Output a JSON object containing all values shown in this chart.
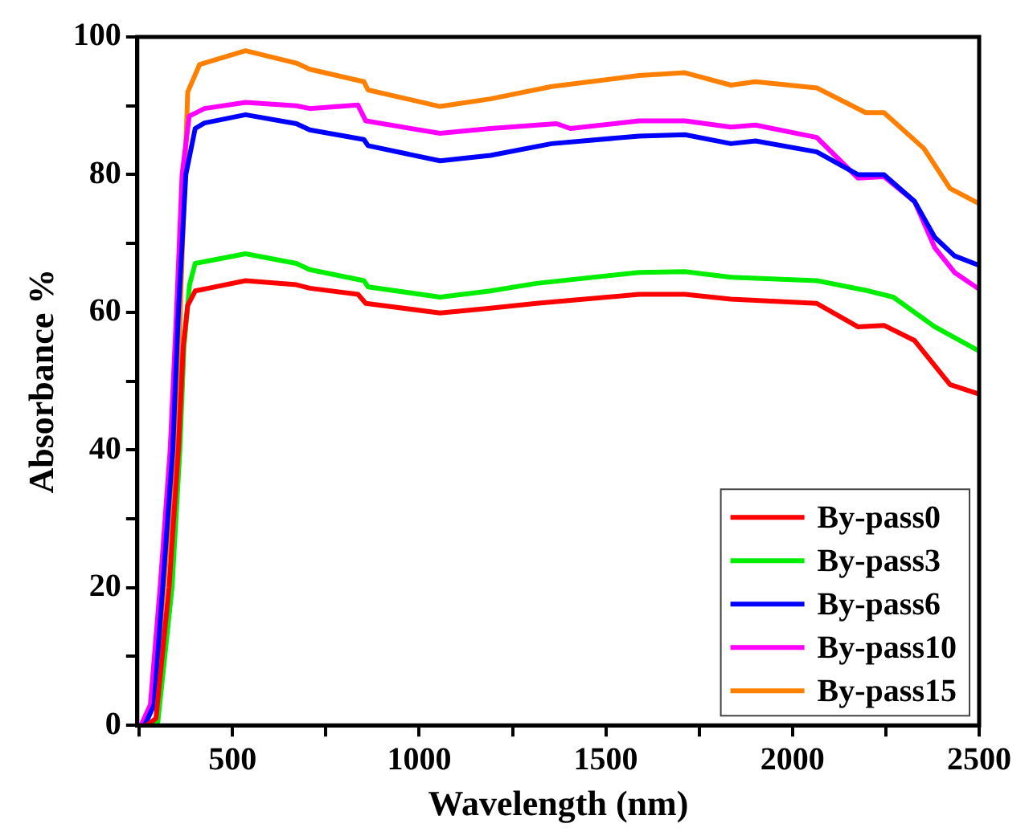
{
  "chart_data": {
    "type": "line",
    "xlabel": "Wavelength (nm)",
    "ylabel": "Absorbance %",
    "xlim": [
      245,
      2500
    ],
    "ylim": [
      0,
      100
    ],
    "xticks": [
      {
        "value": 250,
        "label": null
      },
      500,
      {
        "value": 750,
        "label": null
      },
      1000,
      {
        "value": 1250,
        "label": null
      },
      1500,
      {
        "value": 1750,
        "label": null
      },
      2000,
      {
        "value": 2250,
        "label": null
      },
      2500
    ],
    "yticks": [
      0,
      {
        "value": 10,
        "label": null
      },
      20,
      {
        "value": 30,
        "label": null
      },
      40,
      {
        "value": 50,
        "label": null
      },
      60,
      {
        "value": 70,
        "label": null
      },
      80,
      {
        "value": 90,
        "label": null
      },
      100
    ],
    "grid": false,
    "legend": "bottom right",
    "marker": "none",
    "line_style": "solid",
    "series": [
      {
        "name": "By-pass0",
        "color": "#ff0000",
        "x": [
          270,
          295,
          330,
          355,
          368,
          380,
          400,
          535,
          671,
          707,
          836,
          857,
          1056,
          1191,
          1314,
          1589,
          1712,
          1835,
          2065,
          2175,
          2245,
          2327,
          2422,
          2496
        ],
        "values": [
          0,
          1,
          20,
          40,
          55,
          61,
          63.1,
          64.6,
          64.0,
          63.5,
          62.6,
          61.3,
          59.9,
          60.6,
          61.3,
          62.6,
          62.6,
          61.9,
          61.3,
          57.9,
          58.1,
          55.9,
          49.5,
          48.2
        ]
      },
      {
        "name": "By-pass3",
        "color": "#00ee00",
        "x": [
          275,
          300,
          338,
          359,
          370,
          385,
          400,
          535,
          671,
          707,
          852,
          863,
          1056,
          1191,
          1314,
          1589,
          1712,
          1835,
          2065,
          2204,
          2270,
          2381,
          2496
        ],
        "values": [
          0,
          0.5,
          20,
          40,
          55,
          64,
          67.1,
          68.5,
          67.1,
          66.2,
          64.6,
          63.7,
          62.2,
          63.1,
          64.2,
          65.8,
          65.9,
          65.1,
          64.6,
          63.1,
          62.2,
          57.9,
          54.5
        ]
      },
      {
        "name": "By-pass6",
        "color": "#0000ff",
        "x": [
          265,
          290,
          313,
          340,
          355,
          375,
          400,
          425,
          535,
          671,
          707,
          852,
          863,
          1056,
          1191,
          1355,
          1589,
          1712,
          1835,
          1901,
          2065,
          2175,
          2245,
          2327,
          2381,
          2434,
          2496
        ],
        "values": [
          0,
          3,
          20,
          40,
          60,
          80,
          86.7,
          87.5,
          88.7,
          87.4,
          86.5,
          85.1,
          84.2,
          82.0,
          82.8,
          84.5,
          85.6,
          85.8,
          84.5,
          84.9,
          83.3,
          80,
          80,
          76.1,
          70.9,
          68.2,
          66.9
        ]
      },
      {
        "name": "By-pass10",
        "color": "#ff00ff",
        "x": [
          255,
          280,
          306,
          333,
          350,
          365,
          384,
          425,
          535,
          671,
          707,
          836,
          857,
          1056,
          1191,
          1368,
          1405,
          1589,
          1712,
          1835,
          1901,
          2065,
          2175,
          2245,
          2327,
          2381,
          2434,
          2496
        ],
        "values": [
          0,
          3,
          20,
          40,
          60,
          80,
          88.5,
          89.6,
          90.5,
          90,
          89.6,
          90.1,
          87.8,
          86,
          86.7,
          87.4,
          86.7,
          87.8,
          87.8,
          86.9,
          87.2,
          85.4,
          79.5,
          79.7,
          76.1,
          69.4,
          65.8,
          63.5
        ]
      },
      {
        "name": "By-pass15",
        "color": "#ff8000",
        "x": [
          260,
          290,
          316,
          347,
          360,
          380,
          412,
          535,
          671,
          707,
          852,
          863,
          1056,
          1191,
          1355,
          1589,
          1712,
          1835,
          1901,
          2065,
          2196,
          2245,
          2352,
          2422,
          2496
        ],
        "values": [
          0,
          3,
          20,
          40,
          60,
          92,
          96,
          98,
          96.2,
          95.3,
          93.5,
          92.3,
          89.9,
          91,
          92.8,
          94.4,
          94.8,
          93.0,
          93.5,
          92.6,
          89,
          89,
          83.8,
          78,
          75.9
        ]
      }
    ]
  }
}
